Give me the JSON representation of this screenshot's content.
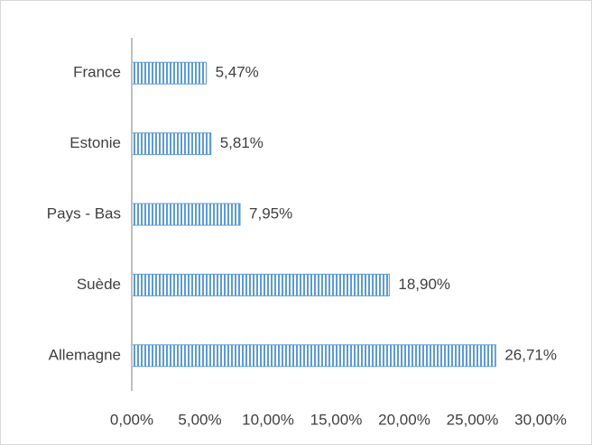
{
  "chart_data": {
    "type": "bar",
    "orientation": "horizontal",
    "categories": [
      "France",
      "Estonie",
      "Pays - Bas",
      "Suède",
      "Allemagne"
    ],
    "values": [
      5.47,
      5.81,
      7.95,
      18.9,
      26.71
    ],
    "value_labels": [
      "5,47%",
      "5,81%",
      "7,95%",
      "18,90%",
      "26,71%"
    ],
    "color": "#5b9bd5",
    "xlim": [
      0,
      30
    ],
    "xticks": [
      {
        "value": 0,
        "label": "0,00%"
      },
      {
        "value": 5,
        "label": "5,00%"
      },
      {
        "value": 10,
        "label": "10,00%"
      },
      {
        "value": 15,
        "label": "15,00%"
      },
      {
        "value": 20,
        "label": "20,00%"
      },
      {
        "value": 25,
        "label": "25,00%"
      },
      {
        "value": 30,
        "label": "30,00%"
      }
    ]
  }
}
